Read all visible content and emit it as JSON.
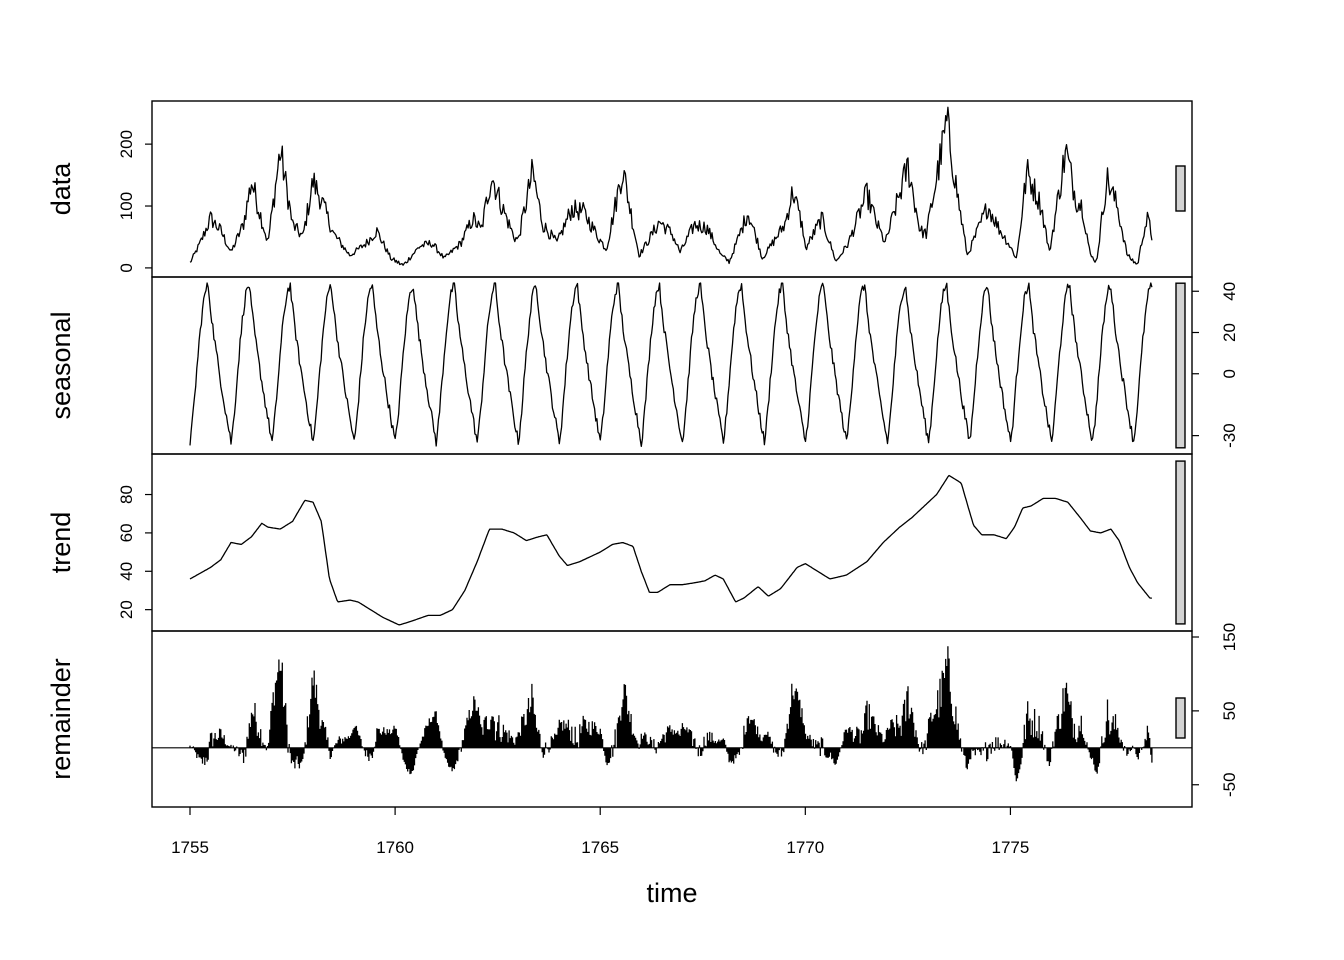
{
  "chart_data": {
    "type": "line",
    "title": "",
    "xlabel": "time",
    "x_range": [
      1755,
      1778.5
    ],
    "x_ticks": [
      1755,
      1760,
      1765,
      1770,
      1775
    ],
    "frequency_per_year": 12,
    "panels": [
      {
        "name": "data",
        "label": "data",
        "ylim": [
          -5,
          260
        ],
        "y_ticks": [
          0,
          100,
          200
        ],
        "axis_side": "left",
        "keyframes": [
          [
            1755.0,
            8
          ],
          [
            1755.25,
            40
          ],
          [
            1755.5,
            80
          ],
          [
            1755.75,
            60
          ],
          [
            1756.0,
            25
          ],
          [
            1756.3,
            70
          ],
          [
            1756.5,
            140
          ],
          [
            1756.7,
            90
          ],
          [
            1756.9,
            40
          ],
          [
            1757.2,
            190
          ],
          [
            1757.5,
            70
          ],
          [
            1757.75,
            50
          ],
          [
            1758.0,
            140
          ],
          [
            1758.2,
            110
          ],
          [
            1758.5,
            55
          ],
          [
            1758.9,
            20
          ],
          [
            1759.3,
            40
          ],
          [
            1759.55,
            60
          ],
          [
            1759.9,
            15
          ],
          [
            1760.2,
            4
          ],
          [
            1760.6,
            35
          ],
          [
            1760.9,
            40
          ],
          [
            1761.2,
            15
          ],
          [
            1761.6,
            40
          ],
          [
            1761.9,
            80
          ],
          [
            1762.1,
            60
          ],
          [
            1762.35,
            150
          ],
          [
            1762.6,
            100
          ],
          [
            1762.9,
            50
          ],
          [
            1763.0,
            45
          ],
          [
            1763.35,
            155
          ],
          [
            1763.6,
            70
          ],
          [
            1763.95,
            40
          ],
          [
            1764.3,
            95
          ],
          [
            1764.6,
            90
          ],
          [
            1764.95,
            50
          ],
          [
            1765.15,
            30
          ],
          [
            1765.55,
            160
          ],
          [
            1765.8,
            70
          ],
          [
            1765.95,
            20
          ],
          [
            1766.45,
            75
          ],
          [
            1766.75,
            55
          ],
          [
            1766.95,
            25
          ],
          [
            1767.3,
            70
          ],
          [
            1767.6,
            65
          ],
          [
            1767.95,
            20
          ],
          [
            1768.15,
            10
          ],
          [
            1768.6,
            90
          ],
          [
            1768.85,
            40
          ],
          [
            1768.95,
            15
          ],
          [
            1769.5,
            70
          ],
          [
            1769.7,
            125
          ],
          [
            1769.95,
            60
          ],
          [
            1770.0,
            30
          ],
          [
            1770.4,
            80
          ],
          [
            1770.75,
            10
          ],
          [
            1771.05,
            40
          ],
          [
            1771.5,
            120
          ],
          [
            1771.75,
            70
          ],
          [
            1771.95,
            40
          ],
          [
            1772.5,
            165
          ],
          [
            1772.8,
            60
          ],
          [
            1772.95,
            55
          ],
          [
            1773.45,
            235
          ],
          [
            1773.75,
            100
          ],
          [
            1773.95,
            20
          ],
          [
            1774.45,
            100
          ],
          [
            1774.75,
            60
          ],
          [
            1774.95,
            40
          ],
          [
            1775.15,
            15
          ],
          [
            1775.4,
            155
          ],
          [
            1775.75,
            100
          ],
          [
            1775.95,
            25
          ],
          [
            1776.35,
            190
          ],
          [
            1776.6,
            110
          ],
          [
            1776.75,
            100
          ],
          [
            1776.95,
            20
          ],
          [
            1777.1,
            10
          ],
          [
            1777.35,
            145
          ],
          [
            1777.6,
            100
          ],
          [
            1777.85,
            20
          ],
          [
            1778.1,
            5
          ],
          [
            1778.25,
            60
          ],
          [
            1778.35,
            80
          ],
          [
            1778.45,
            50
          ]
        ]
      },
      {
        "name": "seasonal",
        "label": "seasonal",
        "ylim": [
          -36,
          44
        ],
        "y_ticks": [
          -30,
          0,
          20,
          40
        ],
        "axis_side": "right",
        "seasonal_amplitude": [
          -33,
          43
        ],
        "seasonal_peak_month": 5
      },
      {
        "name": "trend",
        "label": "trend",
        "ylim": [
          12,
          98
        ],
        "y_ticks": [
          20,
          40,
          60,
          80
        ],
        "axis_side": "left",
        "keyframes": [
          [
            1755.0,
            36
          ],
          [
            1755.5,
            42
          ],
          [
            1755.75,
            46
          ],
          [
            1756.0,
            55
          ],
          [
            1756.25,
            54
          ],
          [
            1756.5,
            58
          ],
          [
            1756.75,
            65
          ],
          [
            1756.9,
            63
          ],
          [
            1757.2,
            62
          ],
          [
            1757.5,
            66
          ],
          [
            1757.8,
            77
          ],
          [
            1758.0,
            76
          ],
          [
            1758.2,
            66
          ],
          [
            1758.4,
            36
          ],
          [
            1758.6,
            24
          ],
          [
            1758.9,
            25
          ],
          [
            1759.1,
            24
          ],
          [
            1759.4,
            20
          ],
          [
            1759.7,
            16
          ],
          [
            1760.1,
            12
          ],
          [
            1760.4,
            14
          ],
          [
            1760.8,
            17
          ],
          [
            1761.1,
            17
          ],
          [
            1761.4,
            20
          ],
          [
            1761.7,
            30
          ],
          [
            1762.0,
            45
          ],
          [
            1762.3,
            62
          ],
          [
            1762.6,
            62
          ],
          [
            1762.9,
            60
          ],
          [
            1763.2,
            56
          ],
          [
            1763.5,
            58
          ],
          [
            1763.7,
            59
          ],
          [
            1764.0,
            48
          ],
          [
            1764.2,
            43
          ],
          [
            1764.5,
            45
          ],
          [
            1764.8,
            48
          ],
          [
            1765.0,
            50
          ],
          [
            1765.3,
            54
          ],
          [
            1765.55,
            55
          ],
          [
            1765.8,
            53
          ],
          [
            1766.0,
            40
          ],
          [
            1766.2,
            29
          ],
          [
            1766.4,
            29
          ],
          [
            1766.7,
            33
          ],
          [
            1767.0,
            33
          ],
          [
            1767.3,
            34
          ],
          [
            1767.55,
            35
          ],
          [
            1767.8,
            38
          ],
          [
            1768.0,
            36
          ],
          [
            1768.3,
            24
          ],
          [
            1768.5,
            26
          ],
          [
            1768.85,
            32
          ],
          [
            1769.1,
            27
          ],
          [
            1769.4,
            31
          ],
          [
            1769.8,
            42
          ],
          [
            1770.0,
            44
          ],
          [
            1770.3,
            40
          ],
          [
            1770.6,
            36
          ],
          [
            1771.0,
            38
          ],
          [
            1771.5,
            45
          ],
          [
            1771.9,
            55
          ],
          [
            1772.3,
            63
          ],
          [
            1772.6,
            68
          ],
          [
            1772.9,
            74
          ],
          [
            1773.2,
            80
          ],
          [
            1773.5,
            90
          ],
          [
            1773.8,
            86
          ],
          [
            1774.1,
            64
          ],
          [
            1774.3,
            59
          ],
          [
            1774.6,
            59
          ],
          [
            1774.9,
            57
          ],
          [
            1775.1,
            63
          ],
          [
            1775.3,
            73
          ],
          [
            1775.5,
            74
          ],
          [
            1775.8,
            78
          ],
          [
            1776.1,
            78
          ],
          [
            1776.4,
            76
          ],
          [
            1776.7,
            68
          ],
          [
            1776.95,
            61
          ],
          [
            1777.2,
            60
          ],
          [
            1777.45,
            62
          ],
          [
            1777.65,
            56
          ],
          [
            1777.9,
            42
          ],
          [
            1778.1,
            34
          ],
          [
            1778.4,
            26
          ],
          [
            1778.5,
            26
          ]
        ]
      },
      {
        "name": "remainder",
        "label": "remainder",
        "ylim": [
          -72,
          150
        ],
        "y_ticks": [
          -50,
          50,
          150
        ],
        "axis_side": "right",
        "style": "histogram"
      }
    ]
  }
}
